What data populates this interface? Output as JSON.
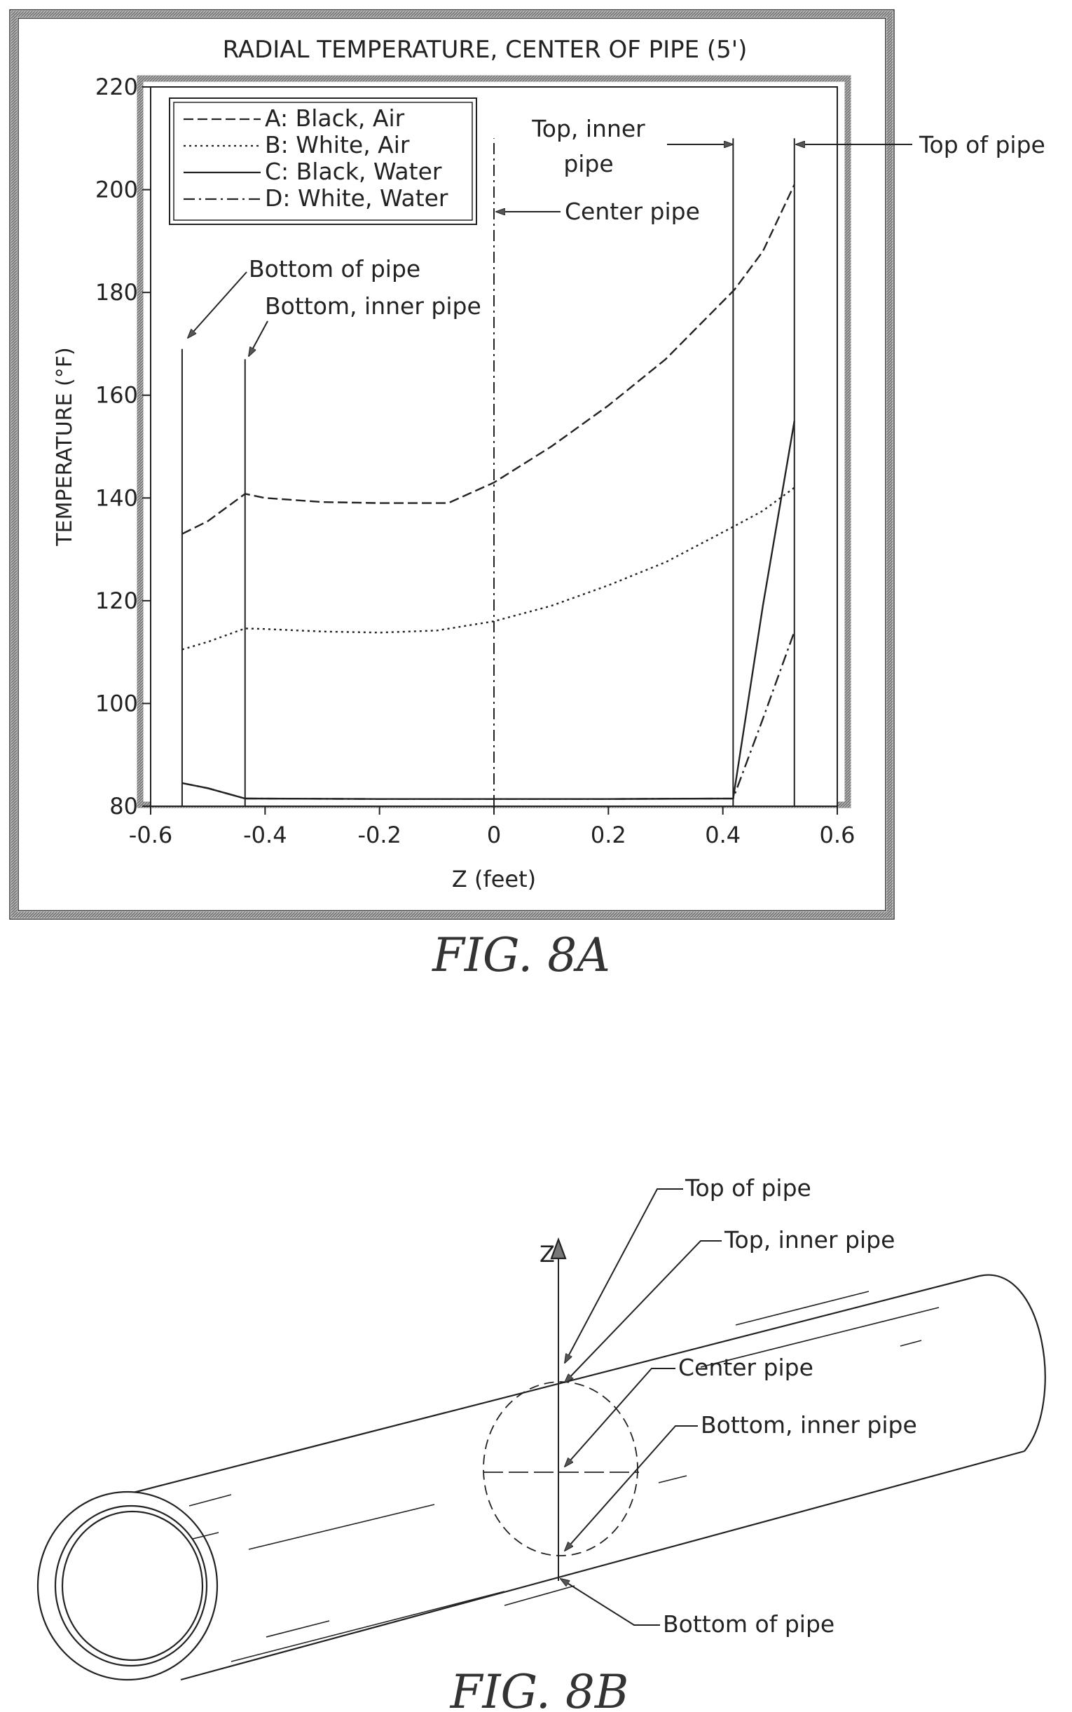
{
  "chart_data": {
    "type": "line",
    "title": "RADIAL TEMPERATURE, CENTER OF PIPE (5')",
    "xlabel": "Z (feet)",
    "ylabel": "TEMPERATURE (°F)",
    "xlim": [
      -0.6,
      0.6
    ],
    "ylim": [
      80,
      220
    ],
    "x_ticks": [
      -0.6,
      -0.4,
      -0.2,
      0,
      0.2,
      0.4,
      0.6
    ],
    "x_tick_labels": [
      "-0.6",
      "-0.4",
      "-0.2",
      "0",
      "0.2",
      "0.4",
      "0.6"
    ],
    "y_ticks": [
      80,
      100,
      120,
      140,
      160,
      180,
      200,
      220
    ],
    "y_tick_labels": [
      "80",
      "100",
      "120",
      "140",
      "160",
      "180",
      "200",
      "220"
    ],
    "grid": false,
    "legend_position": "top-left",
    "series": [
      {
        "name": "A: Black, Air",
        "style": "dashed",
        "x": [
          -0.545,
          -0.5,
          -0.435,
          -0.4,
          -0.3,
          -0.2,
          -0.08,
          -0.05,
          0,
          0.1,
          0.2,
          0.3,
          0.42,
          0.47,
          0.525
        ],
        "y": [
          133,
          135.5,
          140.8,
          140,
          139.2,
          139,
          139,
          140.5,
          143,
          150,
          158,
          167,
          180.5,
          188,
          201
        ]
      },
      {
        "name": "B: White, Air",
        "style": "dotted",
        "x": [
          -0.545,
          -0.5,
          -0.435,
          -0.4,
          -0.3,
          -0.2,
          -0.1,
          0,
          0.1,
          0.2,
          0.3,
          0.42,
          0.47,
          0.525
        ],
        "y": [
          110.5,
          112,
          114.6,
          114.5,
          114,
          113.8,
          114.2,
          116,
          119,
          123,
          127.5,
          134.5,
          137.5,
          142
        ]
      },
      {
        "name": "C: Black, Water",
        "style": "solid",
        "x": [
          -0.545,
          -0.5,
          -0.435,
          -0.2,
          0,
          0.2,
          0.418,
          0.47,
          0.525
        ],
        "y": [
          84.5,
          83.5,
          81.5,
          81.4,
          81.4,
          81.4,
          81.5,
          119,
          155
        ]
      },
      {
        "name": "D: White, Water",
        "style": "dash-dot",
        "x": [
          -0.545,
          -0.5,
          -0.435,
          -0.2,
          0,
          0.2,
          0.418,
          0.47,
          0.525
        ],
        "y": [
          84.5,
          83.5,
          81.5,
          81.4,
          81.4,
          81.4,
          81.5,
          97,
          114
        ]
      }
    ],
    "reference_lines": [
      {
        "x": -0.545,
        "y_top": 169,
        "style": "solid"
      },
      {
        "x": -0.435,
        "y_top": 167,
        "style": "solid"
      },
      {
        "x": 0,
        "y_top": 210,
        "style": "dash-dot"
      },
      {
        "x": 0.418,
        "y_top": 210,
        "style": "solid"
      },
      {
        "x": 0.525,
        "y_top": 210,
        "style": "solid"
      }
    ],
    "annotations": [
      {
        "text": "Bottom of pipe",
        "x": -0.545
      },
      {
        "text": "Bottom, inner pipe",
        "x": -0.435
      },
      {
        "text": "Center pipe",
        "x": 0
      },
      {
        "text_lines": [
          "Top, inner",
          "pipe"
        ],
        "x": 0.418
      },
      {
        "text": "Top of pipe",
        "x": 0.525
      }
    ]
  },
  "captions": {
    "fig_a": "FIG. 8A",
    "fig_b": "FIG. 8B"
  },
  "fig8b": {
    "axis_label": "Z",
    "labels": {
      "top_of_pipe": "Top of pipe",
      "top_inner_pipe": "Top, inner pipe",
      "center_pipe": "Center pipe",
      "bottom_inner_pipe": "Bottom, inner pipe",
      "bottom_of_pipe": "Bottom of pipe"
    }
  },
  "colors": {
    "line": "#222222",
    "frame": "#3a3a3a"
  }
}
